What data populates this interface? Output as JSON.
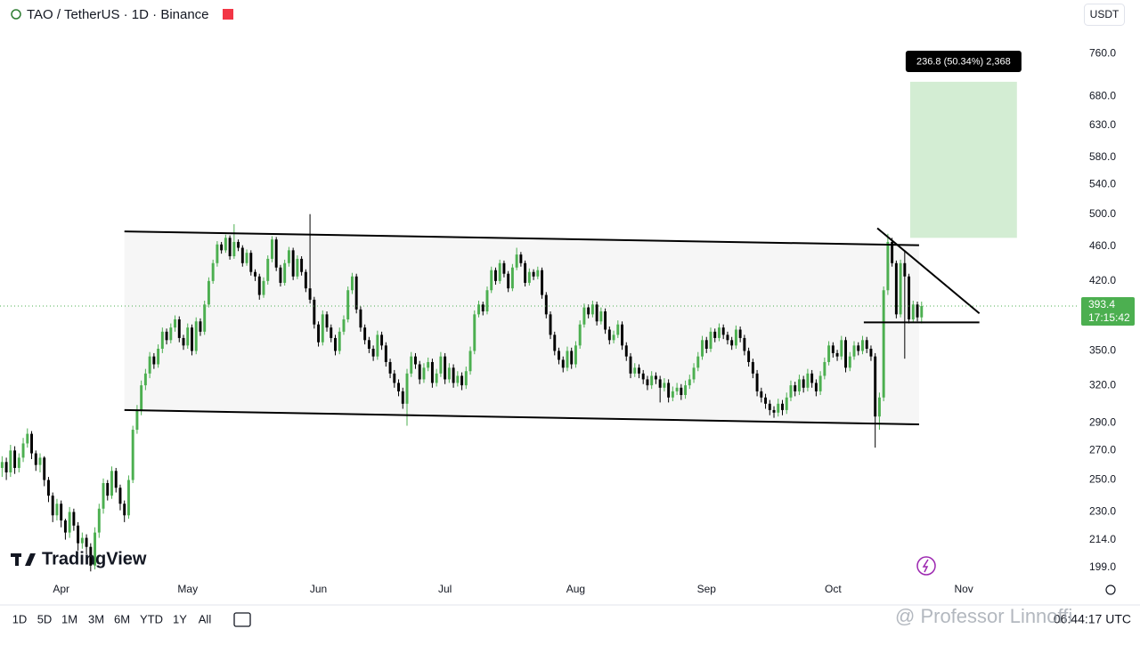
{
  "header": {
    "symbol": "TAO / TetherUS · 1D · Binance",
    "currency": "USDT"
  },
  "logo": "TradingView",
  "watermark": "@ Professor Linnoffi",
  "toolbar": {
    "ranges": [
      "1D",
      "5D",
      "1M",
      "3M",
      "6M",
      "YTD",
      "1Y",
      "All"
    ],
    "clock": "06:44:17 UTC"
  },
  "chart_data": {
    "type": "candlestick",
    "log_scale": true,
    "up_color": "#4caf50",
    "down_color": "#000000",
    "xlim": [
      -0.5,
      255
    ],
    "ylim": [
      193.5,
      815
    ],
    "xticks": [
      {
        "value": 14,
        "label": "Apr"
      },
      {
        "value": 44,
        "label": "May"
      },
      {
        "value": 75,
        "label": "Jun"
      },
      {
        "value": 105,
        "label": "Jul"
      },
      {
        "value": 136,
        "label": "Aug"
      },
      {
        "value": 167,
        "label": "Sep"
      },
      {
        "value": 197,
        "label": "Oct"
      },
      {
        "value": 228,
        "label": "Nov"
      }
    ],
    "yticks": [
      {
        "value": 760,
        "label": "760.0"
      },
      {
        "value": 680,
        "label": "680.0"
      },
      {
        "value": 630,
        "label": "630.0"
      },
      {
        "value": 580,
        "label": "580.0"
      },
      {
        "value": 540,
        "label": "540.0"
      },
      {
        "value": 500,
        "label": "500.0"
      },
      {
        "value": 460,
        "label": "460.0"
      },
      {
        "value": 420,
        "label": "420.0"
      },
      {
        "value": 350,
        "label": "350.0"
      },
      {
        "value": 320,
        "label": "320.0"
      },
      {
        "value": 290,
        "label": "290.0"
      },
      {
        "value": 270,
        "label": "270.0"
      },
      {
        "value": 250,
        "label": "250.0"
      },
      {
        "value": 230,
        "label": "230.0"
      },
      {
        "value": 214,
        "label": "214.0"
      },
      {
        "value": 199,
        "label": "199.0"
      }
    ],
    "last_price": 393.4,
    "countdown": "17:15:42",
    "channel": {
      "upper": [
        [
          29,
          478
        ],
        [
          217.4,
          461
        ]
      ],
      "lower": [
        [
          29,
          300
        ],
        [
          217.4,
          289
        ]
      ]
    },
    "lines": [
      {
        "from": [
          207.5,
          482
        ],
        "to": [
          231.7,
          386
        ]
      },
      {
        "from": [
          204.3,
          377
        ],
        "to": [
          231.7,
          377
        ]
      }
    ],
    "measure": {
      "label": "236.8 (50.34%) 2,368",
      "from": [
        215.3,
        470
      ],
      "to": [
        240.6,
        706
      ]
    },
    "ohlc": [
      [
        258,
        266,
        252,
        262
      ],
      [
        262,
        265,
        250,
        255
      ],
      [
        255,
        274,
        252,
        270
      ],
      [
        270,
        273,
        254,
        258
      ],
      [
        258,
        268,
        255,
        265
      ],
      [
        265,
        279,
        262,
        275
      ],
      [
        275,
        286,
        272,
        282
      ],
      [
        282,
        284,
        264,
        268
      ],
      [
        268,
        270,
        256,
        260
      ],
      [
        260,
        268,
        255,
        265
      ],
      [
        265,
        266,
        246,
        250
      ],
      [
        250,
        252,
        236,
        240
      ],
      [
        240,
        242,
        224,
        228
      ],
      [
        228,
        238,
        225,
        235
      ],
      [
        235,
        237,
        221,
        225
      ],
      [
        225,
        226,
        214,
        218
      ],
      [
        218,
        233,
        215,
        230
      ],
      [
        230,
        232,
        219,
        222
      ],
      [
        222,
        224,
        208,
        212
      ],
      [
        212,
        218,
        209,
        215
      ],
      [
        215,
        217,
        206,
        210
      ],
      [
        210,
        212,
        197,
        200
      ],
      [
        200,
        221,
        198,
        218
      ],
      [
        218,
        235,
        215,
        232
      ],
      [
        232,
        251,
        229,
        248
      ],
      [
        248,
        250,
        237,
        240
      ],
      [
        240,
        259,
        238,
        256
      ],
      [
        256,
        258,
        242,
        245
      ],
      [
        245,
        247,
        231,
        235
      ],
      [
        235,
        237,
        224,
        228
      ],
      [
        228,
        253,
        226,
        250
      ],
      [
        250,
        288,
        248,
        285
      ],
      [
        285,
        304,
        282,
        300
      ],
      [
        300,
        324,
        296,
        320
      ],
      [
        320,
        334,
        316,
        330
      ],
      [
        330,
        349,
        326,
        345
      ],
      [
        345,
        348,
        334,
        338
      ],
      [
        338,
        356,
        335,
        352
      ],
      [
        352,
        372,
        348,
        368
      ],
      [
        368,
        371,
        356,
        360
      ],
      [
        360,
        376,
        357,
        372
      ],
      [
        372,
        384,
        368,
        380
      ],
      [
        380,
        383,
        358,
        362
      ],
      [
        362,
        365,
        351,
        355
      ],
      [
        355,
        376,
        352,
        372
      ],
      [
        372,
        375,
        346,
        350
      ],
      [
        350,
        382,
        347,
        378
      ],
      [
        378,
        381,
        364,
        368
      ],
      [
        368,
        399,
        365,
        395
      ],
      [
        395,
        424,
        392,
        420
      ],
      [
        420,
        444,
        417,
        440
      ],
      [
        440,
        466,
        436,
        462
      ],
      [
        462,
        465,
        451,
        455
      ],
      [
        455,
        474,
        452,
        470
      ],
      [
        470,
        473,
        444,
        448
      ],
      [
        448,
        487,
        445,
        465
      ],
      [
        465,
        468,
        454,
        458
      ],
      [
        458,
        461,
        436,
        440
      ],
      [
        440,
        456,
        437,
        452
      ],
      [
        452,
        455,
        426,
        430
      ],
      [
        430,
        433,
        420,
        425
      ],
      [
        425,
        428,
        400,
        405
      ],
      [
        405,
        424,
        402,
        420
      ],
      [
        420,
        449,
        416,
        445
      ],
      [
        445,
        472,
        441,
        468
      ],
      [
        468,
        471,
        431,
        435
      ],
      [
        435,
        438,
        414,
        418
      ],
      [
        418,
        444,
        415,
        440
      ],
      [
        440,
        459,
        436,
        455
      ],
      [
        455,
        458,
        421,
        425
      ],
      [
        425,
        449,
        422,
        445
      ],
      [
        445,
        448,
        426,
        430
      ],
      [
        430,
        433,
        408,
        412
      ],
      [
        412,
        500,
        396,
        400
      ],
      [
        400,
        403,
        371,
        375
      ],
      [
        375,
        378,
        354,
        358
      ],
      [
        358,
        389,
        355,
        385
      ],
      [
        385,
        388,
        368,
        372
      ],
      [
        372,
        375,
        358,
        362
      ],
      [
        362,
        365,
        346,
        350
      ],
      [
        350,
        372,
        347,
        368
      ],
      [
        368,
        384,
        365,
        380
      ],
      [
        380,
        414,
        377,
        410
      ],
      [
        410,
        429,
        406,
        425
      ],
      [
        425,
        428,
        386,
        390
      ],
      [
        390,
        393,
        368,
        372
      ],
      [
        372,
        375,
        356,
        360
      ],
      [
        360,
        363,
        348,
        352
      ],
      [
        352,
        355,
        341,
        345
      ],
      [
        345,
        369,
        342,
        365
      ],
      [
        365,
        368,
        351,
        355
      ],
      [
        355,
        358,
        336,
        340
      ],
      [
        340,
        343,
        326,
        330
      ],
      [
        330,
        333,
        318,
        322
      ],
      [
        322,
        325,
        311,
        315
      ],
      [
        315,
        318,
        301,
        305
      ],
      [
        305,
        334,
        288,
        330
      ],
      [
        330,
        349,
        327,
        345
      ],
      [
        345,
        348,
        334,
        338
      ],
      [
        338,
        341,
        321,
        325
      ],
      [
        325,
        339,
        322,
        335
      ],
      [
        335,
        344,
        332,
        340
      ],
      [
        340,
        343,
        318,
        322
      ],
      [
        322,
        334,
        319,
        330
      ],
      [
        330,
        349,
        327,
        345
      ],
      [
        345,
        348,
        321,
        325
      ],
      [
        325,
        339,
        322,
        335
      ],
      [
        335,
        338,
        318,
        322
      ],
      [
        322,
        332,
        319,
        328
      ],
      [
        328,
        331,
        316,
        320
      ],
      [
        320,
        336,
        317,
        332
      ],
      [
        332,
        354,
        329,
        350
      ],
      [
        350,
        389,
        347,
        385
      ],
      [
        385,
        399,
        382,
        395
      ],
      [
        395,
        398,
        384,
        388
      ],
      [
        388,
        414,
        385,
        410
      ],
      [
        410,
        436,
        407,
        432
      ],
      [
        432,
        435,
        416,
        420
      ],
      [
        420,
        444,
        417,
        440
      ],
      [
        440,
        443,
        424,
        428
      ],
      [
        428,
        431,
        408,
        412
      ],
      [
        412,
        439,
        409,
        435
      ],
      [
        435,
        458,
        432,
        450
      ],
      [
        450,
        453,
        436,
        440
      ],
      [
        440,
        443,
        414,
        418
      ],
      [
        418,
        434,
        415,
        430
      ],
      [
        430,
        433,
        421,
        425
      ],
      [
        425,
        436,
        422,
        432
      ],
      [
        432,
        435,
        401,
        405
      ],
      [
        405,
        408,
        381,
        385
      ],
      [
        385,
        388,
        361,
        365
      ],
      [
        365,
        368,
        346,
        350
      ],
      [
        350,
        353,
        338,
        342
      ],
      [
        342,
        345,
        331,
        335
      ],
      [
        335,
        354,
        332,
        350
      ],
      [
        350,
        353,
        334,
        338
      ],
      [
        338,
        359,
        335,
        355
      ],
      [
        355,
        379,
        352,
        375
      ],
      [
        375,
        396,
        372,
        392
      ],
      [
        392,
        395,
        381,
        385
      ],
      [
        385,
        399,
        382,
        395
      ],
      [
        395,
        398,
        374,
        378
      ],
      [
        378,
        392,
        375,
        388
      ],
      [
        388,
        391,
        366,
        370
      ],
      [
        370,
        373,
        356,
        360
      ],
      [
        360,
        369,
        357,
        365
      ],
      [
        365,
        379,
        362,
        375
      ],
      [
        375,
        378,
        351,
        355
      ],
      [
        355,
        358,
        341,
        345
      ],
      [
        345,
        348,
        326,
        330
      ],
      [
        330,
        339,
        327,
        335
      ],
      [
        335,
        338,
        326,
        330
      ],
      [
        330,
        333,
        321,
        325
      ],
      [
        325,
        328,
        316,
        320
      ],
      [
        320,
        332,
        317,
        328
      ],
      [
        328,
        331,
        321,
        325
      ],
      [
        325,
        328,
        306,
        318
      ],
      [
        318,
        326,
        315,
        322
      ],
      [
        322,
        325,
        306,
        310
      ],
      [
        310,
        319,
        307,
        315
      ],
      [
        315,
        322,
        312,
        318
      ],
      [
        318,
        321,
        308,
        312
      ],
      [
        312,
        324,
        309,
        320
      ],
      [
        320,
        329,
        317,
        325
      ],
      [
        325,
        339,
        322,
        335
      ],
      [
        335,
        349,
        332,
        345
      ],
      [
        345,
        364,
        342,
        360
      ],
      [
        360,
        363,
        348,
        352
      ],
      [
        352,
        372,
        349,
        368
      ],
      [
        368,
        371,
        358,
        362
      ],
      [
        362,
        376,
        359,
        372
      ],
      [
        372,
        375,
        361,
        365
      ],
      [
        365,
        368,
        356,
        360
      ],
      [
        360,
        363,
        351,
        355
      ],
      [
        355,
        374,
        352,
        370
      ],
      [
        370,
        373,
        358,
        362
      ],
      [
        362,
        365,
        346,
        350
      ],
      [
        350,
        353,
        336,
        340
      ],
      [
        340,
        343,
        326,
        330
      ],
      [
        330,
        333,
        311,
        315
      ],
      [
        315,
        318,
        306,
        310
      ],
      [
        310,
        313,
        301,
        305
      ],
      [
        305,
        308,
        296,
        300
      ],
      [
        300,
        303,
        294,
        298
      ],
      [
        298,
        309,
        295,
        305
      ],
      [
        305,
        308,
        296,
        300
      ],
      [
        300,
        314,
        297,
        310
      ],
      [
        310,
        324,
        307,
        320
      ],
      [
        320,
        323,
        311,
        315
      ],
      [
        315,
        329,
        312,
        325
      ],
      [
        325,
        328,
        314,
        318
      ],
      [
        318,
        334,
        315,
        330
      ],
      [
        330,
        333,
        318,
        322
      ],
      [
        322,
        325,
        311,
        315
      ],
      [
        315,
        332,
        312,
        328
      ],
      [
        328,
        344,
        325,
        340
      ],
      [
        340,
        359,
        337,
        355
      ],
      [
        355,
        358,
        344,
        348
      ],
      [
        348,
        351,
        341,
        345
      ],
      [
        345,
        364,
        342,
        360
      ],
      [
        360,
        363,
        331,
        335
      ],
      [
        335,
        349,
        332,
        345
      ],
      [
        345,
        359,
        342,
        355
      ],
      [
        355,
        358,
        346,
        350
      ],
      [
        350,
        364,
        347,
        360
      ],
      [
        360,
        363,
        348,
        352
      ],
      [
        352,
        355,
        341,
        345
      ],
      [
        345,
        348,
        272,
        295
      ],
      [
        295,
        314,
        285,
        310
      ],
      [
        310,
        414,
        307,
        410
      ],
      [
        410,
        475,
        405,
        465
      ],
      [
        465,
        470,
        436,
        440
      ],
      [
        440,
        443,
        381,
        385
      ],
      [
        385,
        444,
        382,
        440
      ],
      [
        440,
        455,
        343,
        425
      ],
      [
        425,
        428,
        376,
        380
      ],
      [
        380,
        399,
        377,
        395
      ],
      [
        395,
        398,
        378,
        382
      ],
      [
        382,
        398,
        376,
        393.4
      ]
    ]
  }
}
